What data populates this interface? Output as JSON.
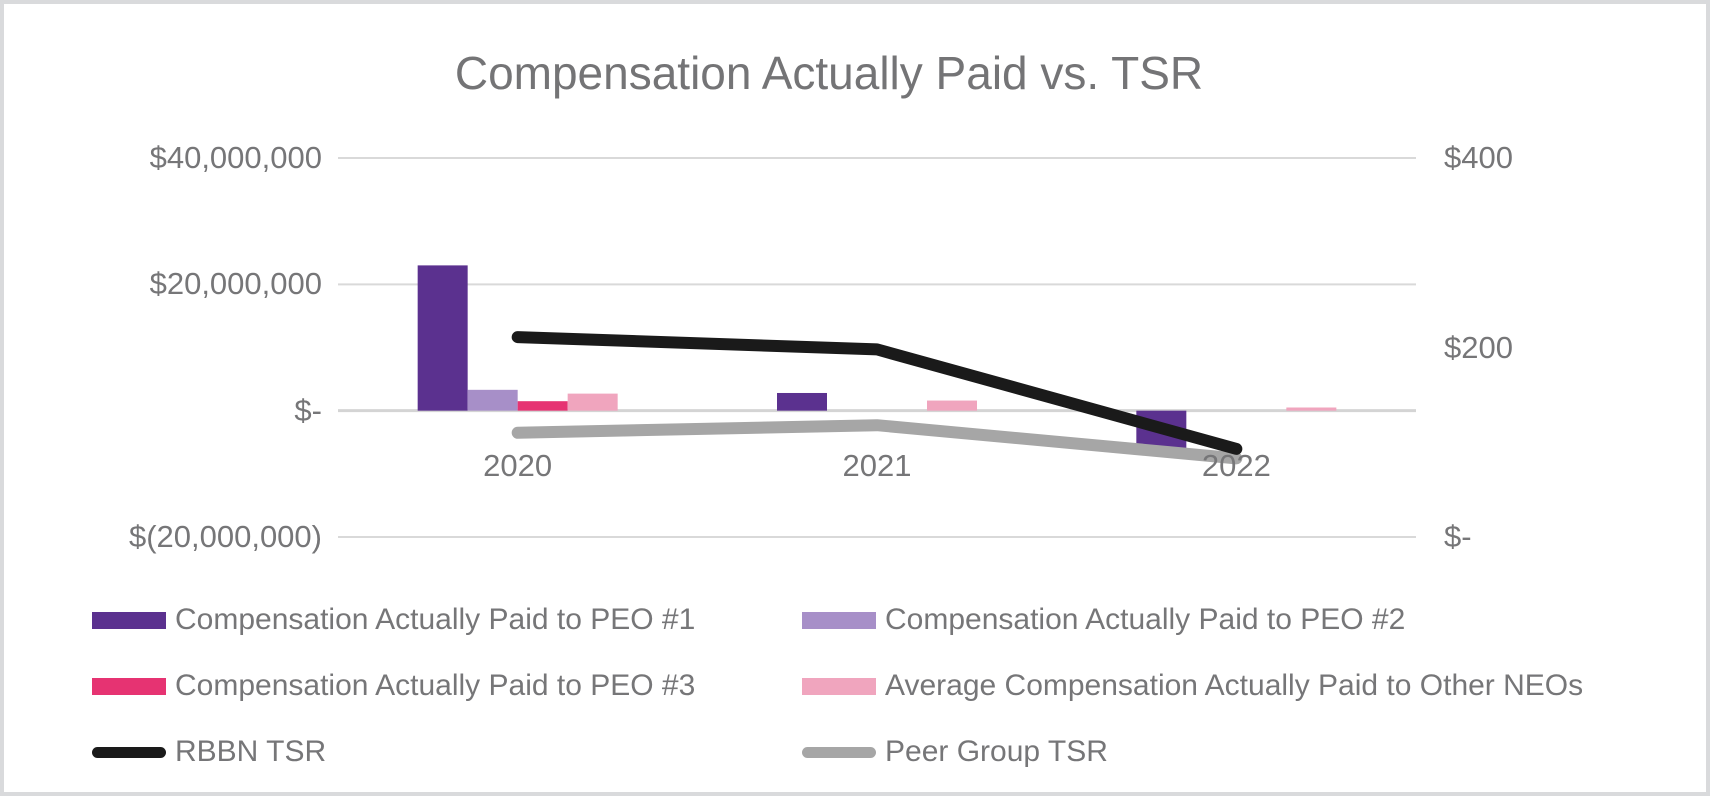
{
  "chart_data": {
    "type": "bar",
    "subtype": "combo-bar-line-dual-axis",
    "title": "Compensation Actually Paid vs. TSR",
    "categories": [
      "2020",
      "2021",
      "2022"
    ],
    "bar_series": [
      {
        "key": "peo1",
        "name": "Compensation Actually Paid to PEO #1",
        "color": "#5B318F",
        "axis": "left",
        "values": [
          23000000,
          2800000,
          -6300000
        ]
      },
      {
        "key": "peo2",
        "name": "Compensation Actually Paid to PEO #2",
        "color": "#A78FC8",
        "axis": "left",
        "values": [
          3300000,
          0,
          0
        ]
      },
      {
        "key": "peo3",
        "name": "Compensation Actually Paid to PEO #3",
        "color": "#E63372",
        "axis": "left",
        "values": [
          1500000,
          0,
          0
        ]
      },
      {
        "key": "neos",
        "name": "Average Compensation Actually Paid to Other NEOs",
        "color": "#F0A5BE",
        "axis": "left",
        "values": [
          2700000,
          1600000,
          500000
        ]
      }
    ],
    "line_series": [
      {
        "key": "rbbn",
        "name": "RBBN TSR",
        "color": "#1A1A1A",
        "axis": "right",
        "values": [
          211,
          198,
          93
        ]
      },
      {
        "key": "peer",
        "name": "Peer Group TSR",
        "color": "#A6A6A6",
        "axis": "right",
        "values": [
          110,
          118,
          83
        ]
      }
    ],
    "left_axis": {
      "ticks": [
        {
          "label": "$40,000,000",
          "value": 40000000
        },
        {
          "label": "$20,000,000",
          "value": 20000000
        },
        {
          "label": "$-",
          "value": 0
        },
        {
          "label": "$(20,000,000)",
          "value": -20000000
        }
      ],
      "range": [
        -20000000,
        40000000
      ]
    },
    "right_axis": {
      "ticks": [
        {
          "label": "$400",
          "value": 400
        },
        {
          "label": "$200",
          "value": 200
        },
        {
          "label": "$-",
          "value": 0
        }
      ],
      "range": [
        0,
        400
      ]
    },
    "grid": true,
    "legend_position": "bottom"
  },
  "legend": {
    "items": [
      {
        "key": "peo1",
        "type": "bar",
        "color": "#5B318F",
        "label": "Compensation Actually Paid to PEO #1"
      },
      {
        "key": "peo2",
        "type": "bar",
        "color": "#A78FC8",
        "label": "Compensation Actually Paid to PEO #2"
      },
      {
        "key": "peo3",
        "type": "bar",
        "color": "#E63372",
        "label": "Compensation Actually Paid to PEO #3"
      },
      {
        "key": "neos",
        "type": "bar",
        "color": "#F0A5BE",
        "label": "Average Compensation Actually Paid to Other NEOs"
      },
      {
        "key": "rbbn",
        "type": "line",
        "color": "#1A1A1A",
        "label": "RBBN TSR"
      },
      {
        "key": "peer",
        "type": "line",
        "color": "#A6A6A6",
        "label": "Peer Group TSR"
      }
    ]
  },
  "colors": {
    "title_text": "#747476",
    "axis_text": "#767678",
    "gridline": "#D9D9D9",
    "zero_line": "#D4D4D4",
    "background": "#FFFFFF",
    "frame_border": "#D9DADC"
  }
}
